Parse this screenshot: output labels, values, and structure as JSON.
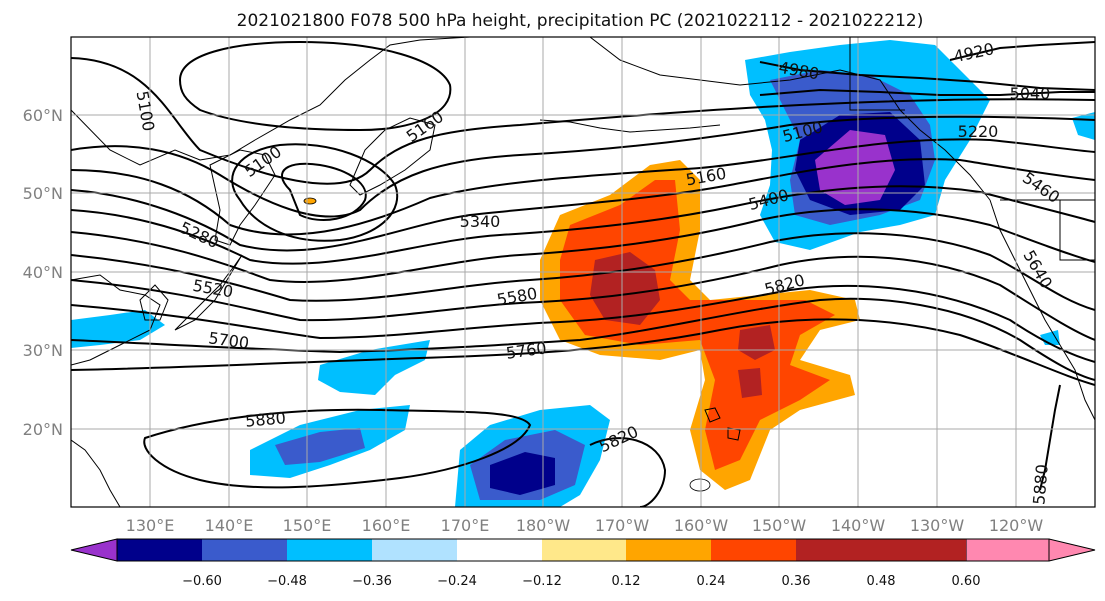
{
  "title": "2021021800 F078 500 hPa height, precipitation PC (2021022112 - 2021022212)",
  "lat_labels": [
    "60°N",
    "50°N",
    "40°N",
    "30°N",
    "20°N"
  ],
  "lon_labels": [
    "130°E",
    "140°E",
    "150°E",
    "160°E",
    "170°E",
    "180°W",
    "170°W",
    "160°W",
    "150°W",
    "140°W",
    "130°W",
    "120°W"
  ],
  "contour_labels": [
    "4920",
    "4980",
    "5040",
    "5100",
    "5100",
    "5100",
    "5160",
    "5160",
    "5220",
    "5280",
    "5340",
    "5400",
    "5460",
    "5520",
    "5580",
    "5640",
    "5700",
    "5760",
    "5820",
    "5820",
    "5880",
    "5880"
  ],
  "colorbar": {
    "colors": [
      "#9932cc",
      "#00008b",
      "#3a5bcc",
      "#00bfff",
      "#b0e2ff",
      "#ffffff",
      "#ffe88a",
      "#ffa500",
      "#ff4500",
      "#b22222",
      "#ff88b0"
    ],
    "labels": [
      "−0.60",
      "−0.48",
      "−0.36",
      "−0.24",
      "−0.12",
      "0.12",
      "0.24",
      "0.36",
      "0.48",
      "0.60"
    ]
  },
  "map_extent": {
    "lon_min": 120,
    "lon_max": 250,
    "lat_min": 10,
    "lat_max": 70
  }
}
